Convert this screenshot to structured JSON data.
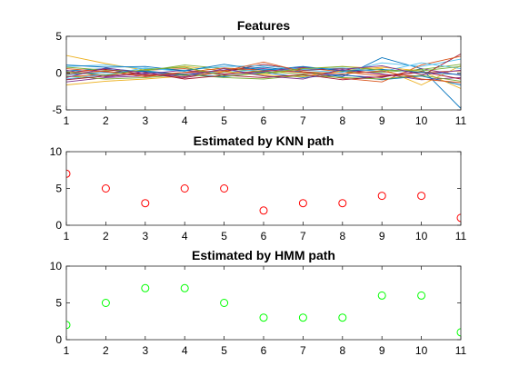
{
  "chart_data": [
    {
      "type": "line",
      "title": "Features",
      "xlabel": "",
      "ylabel": "",
      "xlim": [
        1,
        11
      ],
      "ylim": [
        -5,
        5
      ],
      "x": [
        1,
        2,
        3,
        4,
        5,
        6,
        7,
        8,
        9,
        10,
        11
      ],
      "xticks": [
        1,
        2,
        3,
        4,
        5,
        6,
        7,
        8,
        9,
        10,
        11
      ],
      "yticks": [
        -5,
        0,
        5
      ],
      "grid": false,
      "series": [
        {
          "color": "#0072BD",
          "values": [
            0.3,
            0.6,
            0.2,
            -0.3,
            0.4,
            0.8,
            0.2,
            -0.5,
            2.1,
            0.6,
            -4.8
          ]
        },
        {
          "color": "#D95319",
          "values": [
            -0.5,
            -0.2,
            0.4,
            0.6,
            -0.1,
            0.3,
            0.7,
            0.2,
            -0.4,
            0.1,
            0.3
          ]
        },
        {
          "color": "#EDB120",
          "values": [
            2.4,
            1.3,
            0.4,
            0.9,
            0.3,
            -0.2,
            0.5,
            0.9,
            0.6,
            -1.6,
            1.0
          ]
        },
        {
          "color": "#7E2F8E",
          "values": [
            -1.2,
            -0.6,
            -0.4,
            -0.1,
            0.4,
            0.6,
            0.1,
            -0.3,
            -0.6,
            0.6,
            -0.3
          ]
        },
        {
          "color": "#77AC30",
          "values": [
            0.8,
            0.4,
            0.3,
            1.1,
            0.6,
            0.2,
            -0.1,
            0.2,
            0.1,
            0.5,
            1.2
          ]
        },
        {
          "color": "#4DBEEE",
          "values": [
            -0.8,
            -0.2,
            0.7,
            0.2,
            0.1,
            0.5,
            0.4,
            0.1,
            1.4,
            0.9,
            1.9
          ]
        },
        {
          "color": "#A2142F",
          "values": [
            0.1,
            0.5,
            -0.2,
            -0.6,
            0.2,
            1.2,
            0.4,
            0.6,
            -0.2,
            -0.4,
            2.6
          ]
        },
        {
          "color": "#0072BD",
          "values": [
            -0.2,
            0.1,
            0.3,
            -0.2,
            -0.5,
            0.1,
            -0.6,
            -0.2,
            -0.9,
            -0.4,
            -1.6
          ]
        },
        {
          "color": "#D95319",
          "values": [
            0.6,
            0.2,
            -0.3,
            0.1,
            0.7,
            0.4,
            0.1,
            -0.7,
            -1.2,
            1.1,
            2.3
          ]
        },
        {
          "color": "#EDB120",
          "values": [
            -1.6,
            -1.1,
            -0.8,
            -0.4,
            0.2,
            -0.3,
            -0.5,
            0.3,
            0.8,
            0.3,
            -2.1
          ]
        },
        {
          "color": "#7E2F8E",
          "values": [
            0.4,
            -0.5,
            -0.1,
            0.4,
            -0.2,
            0.2,
            0.8,
            0.4,
            -0.1,
            -0.9,
            -0.6
          ]
        },
        {
          "color": "#77AC30",
          "values": [
            -0.4,
            -0.8,
            -0.6,
            -0.2,
            -0.6,
            -0.8,
            -0.3,
            -0.6,
            -0.8,
            -0.3,
            -1.1
          ]
        },
        {
          "color": "#4DBEEE",
          "values": [
            0.9,
            1.1,
            0.6,
            0.4,
            0.9,
            1.0,
            0.5,
            0.7,
            0.2,
            1.4,
            0.6
          ]
        },
        {
          "color": "#A2142F",
          "values": [
            -0.9,
            -0.4,
            0.1,
            -0.8,
            -0.3,
            -0.6,
            -0.2,
            -0.9,
            -0.5,
            0.2,
            -0.8
          ]
        },
        {
          "color": "#0072BD",
          "values": [
            1.1,
            0.8,
            0.9,
            0.3,
            1.2,
            0.4,
            0.9,
            0.3,
            0.5,
            0.1,
            -0.2
          ]
        },
        {
          "color": "#D95319",
          "values": [
            -0.1,
            0.3,
            -0.5,
            0.1,
            0.3,
            1.5,
            0.2,
            -0.1,
            0.3,
            -0.8,
            -1.3
          ]
        },
        {
          "color": "#77AC30",
          "values": [
            0.2,
            -0.3,
            0.5,
            0.8,
            -0.4,
            0.0,
            0.6,
            0.9,
            0.4,
            0.3,
            0.9
          ]
        },
        {
          "color": "#7E2F8E",
          "values": [
            -0.6,
            0.7,
            0.0,
            -0.5,
            0.6,
            -0.4,
            -0.8,
            0.5,
            1.0,
            -0.2,
            0.4
          ]
        }
      ]
    },
    {
      "type": "scatter",
      "title": "Estimated by KNN path",
      "xlabel": "",
      "ylabel": "",
      "xlim": [
        1,
        11
      ],
      "ylim": [
        0,
        10
      ],
      "xticks": [
        1,
        2,
        3,
        4,
        5,
        6,
        7,
        8,
        9,
        10,
        11
      ],
      "yticks": [
        0,
        5,
        10
      ],
      "grid": false,
      "marker": "circle",
      "color": "#FF0000",
      "x": [
        1,
        2,
        3,
        4,
        5,
        6,
        7,
        8,
        9,
        10,
        11
      ],
      "values": [
        7,
        5,
        3,
        5,
        5,
        2,
        3,
        3,
        4,
        4,
        1
      ]
    },
    {
      "type": "scatter",
      "title": "Estimated by HMM path",
      "xlabel": "",
      "ylabel": "",
      "xlim": [
        1,
        11
      ],
      "ylim": [
        0,
        10
      ],
      "xticks": [
        1,
        2,
        3,
        4,
        5,
        6,
        7,
        8,
        9,
        10,
        11
      ],
      "yticks": [
        0,
        5,
        10
      ],
      "grid": false,
      "marker": "circle",
      "color": "#00FF00",
      "x": [
        1,
        2,
        3,
        4,
        5,
        6,
        7,
        8,
        9,
        10,
        11
      ],
      "values": [
        2,
        5,
        7,
        7,
        5,
        3,
        3,
        3,
        6,
        6,
        1
      ]
    }
  ]
}
